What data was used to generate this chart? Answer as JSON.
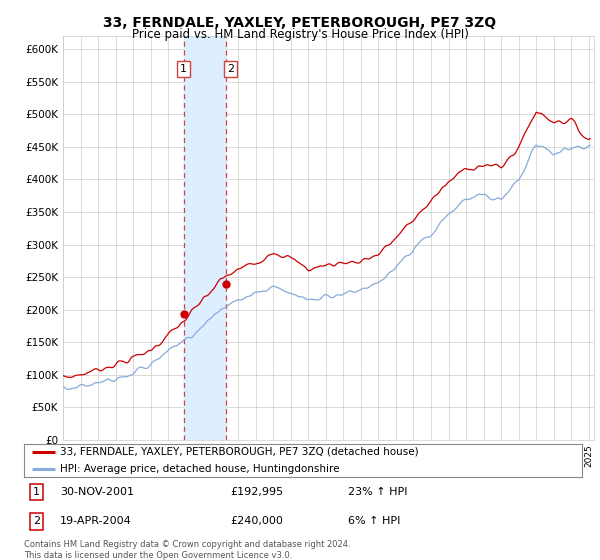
{
  "title": "33, FERNDALE, YAXLEY, PETERBOROUGH, PE7 3ZQ",
  "subtitle": "Price paid vs. HM Land Registry's House Price Index (HPI)",
  "legend_line1": "33, FERNDALE, YAXLEY, PETERBOROUGH, PE7 3ZQ (detached house)",
  "legend_line2": "HPI: Average price, detached house, Huntingdonshire",
  "transaction1_date": "30-NOV-2001",
  "transaction1_price": "£192,995",
  "transaction1_hpi": "23% ↑ HPI",
  "transaction2_date": "19-APR-2004",
  "transaction2_price": "£240,000",
  "transaction2_hpi": "6% ↑ HPI",
  "footnote": "Contains HM Land Registry data © Crown copyright and database right 2024.\nThis data is licensed under the Open Government Licence v3.0.",
  "price_line_color": "#cc0000",
  "hpi_line_color": "#88aadd",
  "highlight_fill": "#ddeeff",
  "highlight_edge_color": "#cc4444",
  "ylim_min": 0,
  "ylim_max": 620000,
  "yticks": [
    0,
    50000,
    100000,
    150000,
    200000,
    250000,
    300000,
    350000,
    400000,
    450000,
    500000,
    550000,
    600000
  ],
  "transaction1_year": 2001.917,
  "transaction2_year": 2004.292,
  "transaction1_value": 192995,
  "transaction2_value": 240000,
  "hpi_control_years": [
    1995,
    1996,
    1997,
    1998,
    1999,
    2000,
    2001,
    2002,
    2003,
    2004,
    2005,
    2006,
    2007,
    2008,
    2009,
    2010,
    2011,
    2012,
    2013,
    2014,
    2015,
    2016,
    2017,
    2018,
    2019,
    2020,
    2021,
    2022,
    2023,
    2024,
    2025
  ],
  "hpi_control_vals": [
    78000,
    82000,
    88000,
    95000,
    103000,
    115000,
    135000,
    155000,
    175000,
    200000,
    215000,
    225000,
    235000,
    225000,
    215000,
    220000,
    225000,
    228000,
    240000,
    265000,
    290000,
    315000,
    345000,
    370000,
    375000,
    370000,
    400000,
    455000,
    440000,
    450000,
    450000
  ],
  "price_control_years": [
    1995,
    1996,
    1997,
    1998,
    1999,
    2000,
    2001,
    2002,
    2003,
    2004,
    2005,
    2006,
    2007,
    2008,
    2009,
    2010,
    2011,
    2012,
    2013,
    2014,
    2015,
    2016,
    2017,
    2018,
    2019,
    2020,
    2021,
    2022,
    2023,
    2024,
    2025
  ],
  "price_control_vals": [
    95000,
    100000,
    108000,
    116000,
    125000,
    138000,
    160000,
    185000,
    215000,
    245000,
    262000,
    272000,
    290000,
    278000,
    262000,
    268000,
    272000,
    275000,
    285000,
    310000,
    338000,
    368000,
    395000,
    418000,
    422000,
    418000,
    450000,
    505000,
    490000,
    490000,
    460000
  ]
}
